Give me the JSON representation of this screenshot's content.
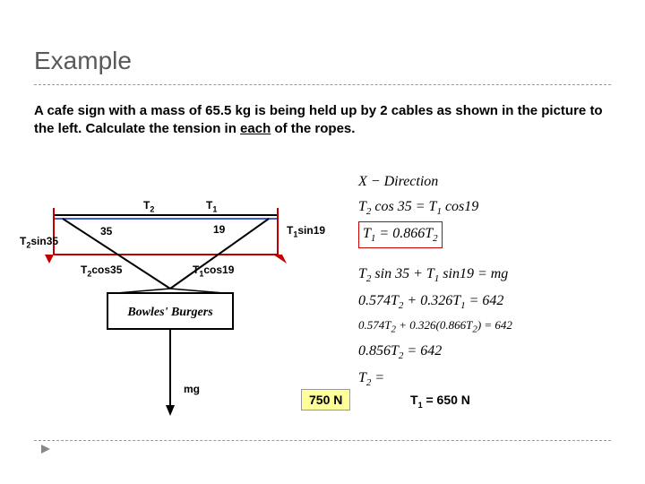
{
  "title": "Example",
  "problem_html": "A cafe sign with a mass of 65.5 kg is being held up by 2 cables as shown in the picture to the left. Calculate the tension in <span class='underline'>each</span> of the ropes.",
  "diagram": {
    "labels": {
      "T2": "T",
      "T1": "T",
      "T1sin19": "T<sub>1</sub>sin19",
      "T2sin35": "T<sub>2</sub>sin35",
      "T2cos35": "T<sub>2</sub>cos35",
      "T1cos19": "T<sub>1</sub>cos19",
      "angle35": "35",
      "angle19": "19",
      "mg": "mg",
      "sign": "Bowles' Burgers"
    },
    "colors": {
      "weight_arrow": "#000000",
      "red": "#c00000",
      "bar": "#3a5fcd",
      "sign_border": "#000000"
    }
  },
  "equations": {
    "xdir_label": "X − Direction",
    "eq1": "T<sub>2</sub> cos 35 = T<sub>1</sub> cos19",
    "eq2": "T<sub>1</sub> = 0.866T<sub>2</sub>",
    "eq3": "T<sub>2</sub> sin 35 + T<sub>1</sub> sin19 = mg",
    "eq4": "0.574T<sub>2</sub> + 0.326T<sub>1</sub> = 642",
    "eq5": "0.574T<sub>2</sub> + 0.326(0.866T<sub>2</sub>) = 642",
    "eq6": "0.856T<sub>2</sub> = 642",
    "eq7": "T<sub>2</sub> ="
  },
  "answers": {
    "t2_val": "750 N",
    "t1_text": "T<sub>1</sub> = 650 N"
  },
  "colors": {
    "title": "#595959",
    "dash": "#999999",
    "highlight_bg": "#ffff99",
    "red_box": "#c00000"
  }
}
